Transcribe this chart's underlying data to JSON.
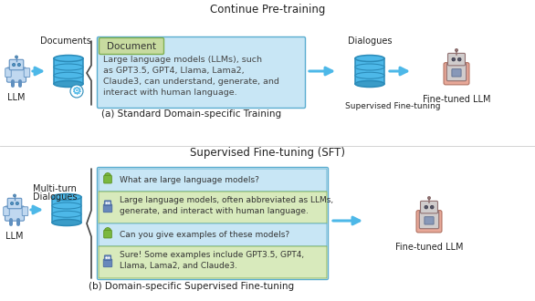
{
  "title_top": "Continue Pre-training",
  "title_mid": "Supervised Fine-tuning (SFT)",
  "caption_a": "(a) Standard Domain-specific Training",
  "caption_b": "(b) Domain-specific Supervised Fine-tuning",
  "label_llm": "LLM",
  "label_documents": "Documents",
  "label_dialogues": "Dialogues",
  "label_finetuned_llm": "Fine-tuned LLM",
  "label_supervised": "Supervised Fine-tuning",
  "label_multiturn": "Multi-turn",
  "label_dialogues_b": "Dialogues",
  "label_finetuned_llm_b": "Fine-tuned LLM",
  "doc_header": "Document",
  "doc_text": "Large language models (LLMs), such\nas GPT3.5, GPT4, Llama, Lama2,\nClaude3, can understand, generate, and\ninteract with human language.",
  "q1": "What are large language models?",
  "a1": "Large language models, often abbreviated as LLMs,\ngenerate, and interact with human language.",
  "q2": "Can you give examples of these models?",
  "a2": "Sure! Some examples include GPT3.5, GPT4,\nLlama, Lama2, and Claude3.",
  "color_blue_arrow": "#4DB8E8",
  "color_box_blue_bg": "#C8E6F5",
  "color_box_blue_border": "#5AADD0",
  "color_doc_header_bg": "#C8DBA0",
  "color_doc_header_border": "#7FAF50",
  "color_answer_bg": "#D8EABC",
  "color_answer_border": "#7FAF50",
  "color_question_bg": "#C8E6F5",
  "color_question_border": "#5AADD0",
  "color_text": "#222222",
  "bg_color": "#FFFFFF"
}
